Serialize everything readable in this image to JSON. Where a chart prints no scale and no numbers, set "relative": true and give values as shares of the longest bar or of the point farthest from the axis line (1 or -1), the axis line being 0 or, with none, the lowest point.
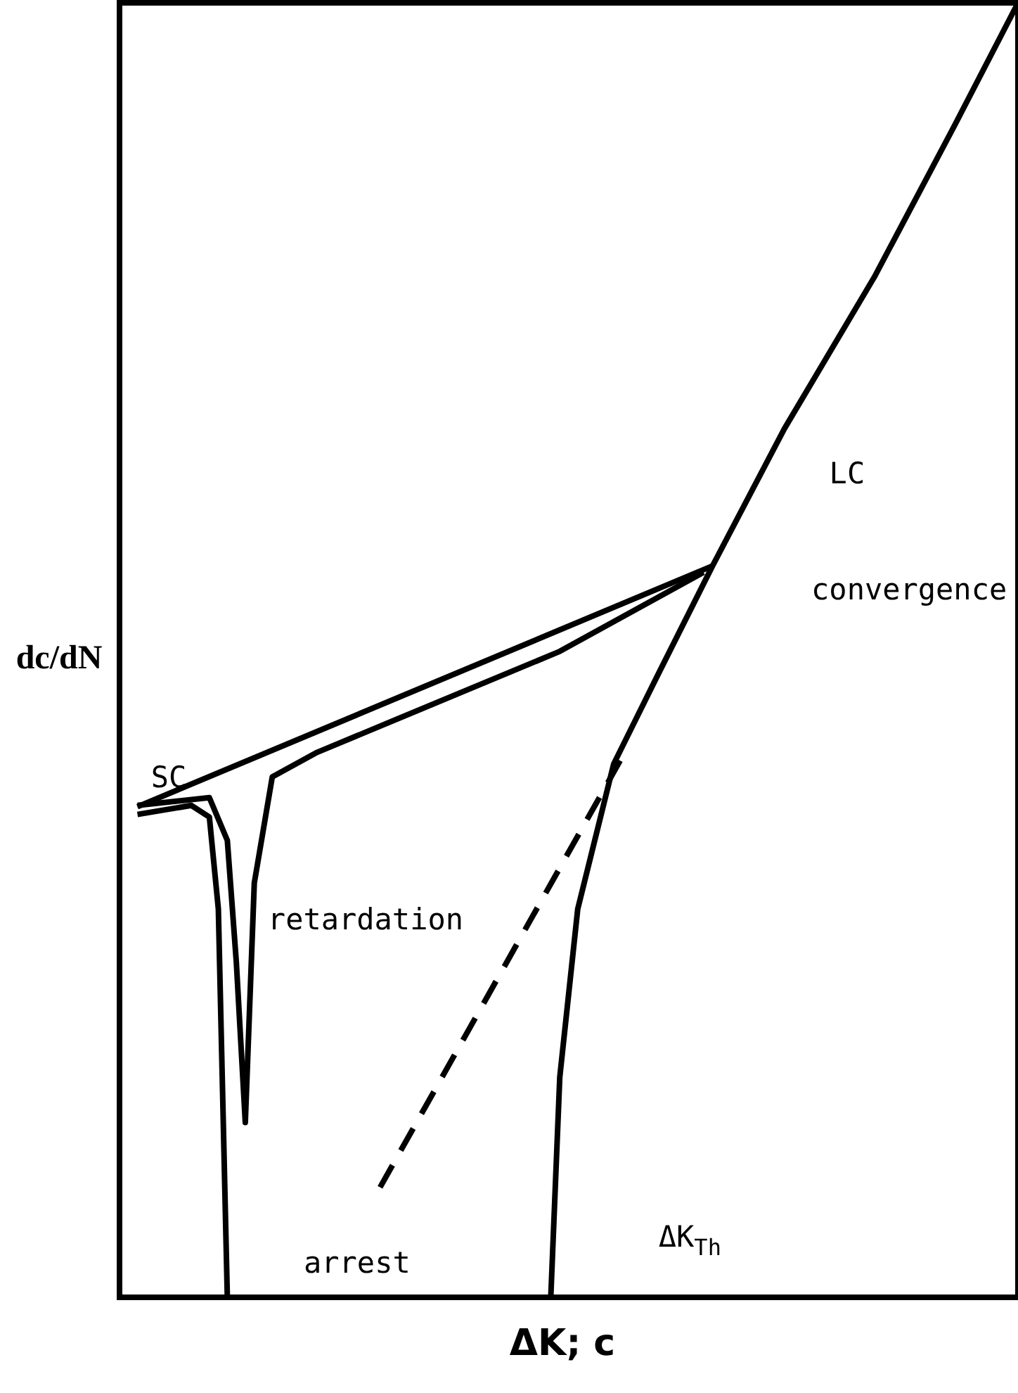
{
  "chart_data": {
    "type": "line",
    "relative": true,
    "xlabel": "ΔK; c",
    "ylabel": "dc/dN",
    "legend": false,
    "marker": "none",
    "categories": [
      null,
      null,
      null,
      null,
      null,
      null,
      null,
      null,
      null,
      null,
      null,
      null,
      null,
      null,
      null,
      null,
      null,
      null,
      null,
      null,
      null,
      null,
      null,
      null,
      null,
      null,
      null,
      null,
      null,
      null,
      null,
      null,
      null,
      null,
      null,
      null,
      null,
      null,
      null,
      null,
      null,
      null,
      null,
      null,
      null,
      null,
      null,
      null,
      null,
      null,
      null,
      null,
      null,
      null,
      null,
      null,
      null,
      null,
      null,
      null,
      null,
      null,
      null,
      null,
      null,
      null,
      null,
      null,
      null,
      null,
      null,
      null,
      null,
      null,
      null,
      null,
      null,
      null,
      null,
      null,
      null,
      null,
      null,
      null,
      null,
      null,
      null,
      null,
      null,
      null,
      null,
      null,
      null,
      null,
      null,
      null,
      null,
      null,
      null,
      null,
      null
    ],
    "series": [
      {
        "color": "#000000",
        "line_style": "solid",
        "values": [
          null,
          null,
          null,
          null,
          null,
          null,
          null,
          null,
          null,
          null,
          null,
          null,
          null,
          null,
          null,
          null,
          null,
          null,
          null,
          null,
          null,
          null,
          null,
          null,
          null,
          null,
          null,
          null,
          null,
          null,
          null,
          null,
          null,
          null,
          null,
          null,
          null,
          null,
          null,
          null,
          null,
          null,
          null,
          null,
          null,
          null,
          null,
          null,
          0,
          0.17,
          null,
          0.3,
          null,
          null,
          null,
          0.412,
          null,
          null,
          null,
          null,
          0.482,
          null,
          null,
          null,
          null,
          null,
          0.565,
          null,
          null,
          null,
          null,
          null,
          null,
          null,
          0.671,
          null,
          null,
          null,
          null,
          null,
          null,
          null,
          null,
          null,
          0.788,
          null,
          null,
          null,
          null,
          null,
          null,
          null,
          null,
          0.906,
          null,
          null,
          null,
          null,
          null,
          null,
          1
        ]
      },
      {
        "color": "#000000",
        "line_style": "solid",
        "values": [
          null,
          null,
          0.379,
          null,
          null,
          null,
          null,
          null,
          null,
          null,
          null,
          null,
          null,
          null,
          null,
          null,
          null,
          null,
          null,
          null,
          null,
          null,
          null,
          null,
          null,
          null,
          null,
          null,
          null,
          null,
          null,
          null,
          null,
          null,
          null,
          null,
          null,
          null,
          null,
          null,
          null,
          null,
          null,
          null,
          null,
          null,
          null,
          null,
          null,
          null,
          null,
          null,
          null,
          null,
          null,
          null,
          null,
          null,
          null,
          null,
          null,
          null,
          null,
          null,
          null,
          null,
          0.565,
          null,
          null,
          null,
          null,
          null,
          null,
          null,
          null,
          null,
          null,
          null,
          null,
          null,
          null,
          null,
          null,
          null,
          null,
          null,
          null,
          null,
          null,
          null,
          null,
          null,
          null,
          null,
          null,
          null,
          null,
          null,
          null,
          null,
          null
        ]
      },
      {
        "color": "#000000",
        "line_style": "solid",
        "values": [
          null,
          null,
          0.38,
          null,
          null,
          null,
          null,
          null,
          null,
          null,
          0.386,
          null,
          0.353,
          0.259,
          0.135,
          0.32,
          null,
          0.402,
          null,
          null,
          null,
          null,
          0.421,
          null,
          null,
          null,
          null,
          null,
          null,
          null,
          null,
          null,
          null,
          null,
          null,
          null,
          null,
          null,
          null,
          null,
          null,
          null,
          null,
          null,
          null,
          null,
          null,
          null,
          null,
          0.499,
          null,
          null,
          null,
          null,
          null,
          null,
          null,
          null,
          null,
          null,
          null,
          null,
          null,
          null,
          null,
          0.56,
          null,
          null,
          null,
          null,
          null,
          null,
          null,
          null,
          null,
          null,
          null,
          null,
          null,
          null,
          null,
          null,
          null,
          null,
          null,
          null,
          null,
          null,
          null,
          null,
          null,
          null,
          null,
          null,
          null,
          null,
          null,
          null,
          null,
          null,
          null
        ]
      },
      {
        "color": "#000000",
        "line_style": "solid",
        "values": [
          null,
          null,
          0.373,
          null,
          null,
          null,
          null,
          null,
          0.38,
          null,
          0.371,
          0.3,
          0,
          null,
          null,
          null,
          null,
          null,
          null,
          null,
          null,
          null,
          null,
          null,
          null,
          null,
          null,
          null,
          null,
          null,
          null,
          null,
          null,
          null,
          null,
          null,
          null,
          null,
          null,
          null,
          null,
          null,
          null,
          null,
          null,
          null,
          null,
          null,
          null,
          null,
          null,
          null,
          null,
          null,
          null,
          null,
          null,
          null,
          null,
          null,
          null,
          null,
          null,
          null,
          null,
          null,
          null,
          null,
          null,
          null,
          null,
          null,
          null,
          null,
          null,
          null,
          null,
          null,
          null,
          null,
          null,
          null,
          null,
          null,
          null,
          null,
          null,
          null,
          null,
          null,
          null,
          null,
          null,
          null,
          null,
          null,
          null,
          null,
          null,
          null,
          null
        ]
      },
      {
        "color": "#000000",
        "line_style": "dashed",
        "values": [
          null,
          null,
          null,
          null,
          null,
          null,
          null,
          null,
          null,
          null,
          null,
          null,
          null,
          null,
          null,
          null,
          null,
          null,
          null,
          null,
          null,
          null,
          null,
          null,
          null,
          null,
          null,
          null,
          null,
          0.085,
          null,
          null,
          null,
          null,
          null,
          null,
          null,
          null,
          null,
          null,
          null,
          null,
          null,
          null,
          null,
          null,
          null,
          null,
          null,
          null,
          null,
          null,
          null,
          null,
          null,
          null,
          0.418,
          null,
          null,
          null,
          null,
          null,
          null,
          null,
          null,
          null,
          null,
          null,
          null,
          null,
          null,
          null,
          null,
          null,
          null,
          null,
          null,
          null,
          null,
          null,
          null,
          null,
          null,
          null,
          null,
          null,
          null,
          null,
          null,
          null,
          null,
          null,
          null,
          null,
          null,
          null,
          null,
          null,
          null,
          null,
          null
        ]
      }
    ],
    "annotations": [
      "SC",
      "retardation",
      "arrest",
      "convergence",
      "LC",
      "ΔK$_{Th}$"
    ]
  }
}
